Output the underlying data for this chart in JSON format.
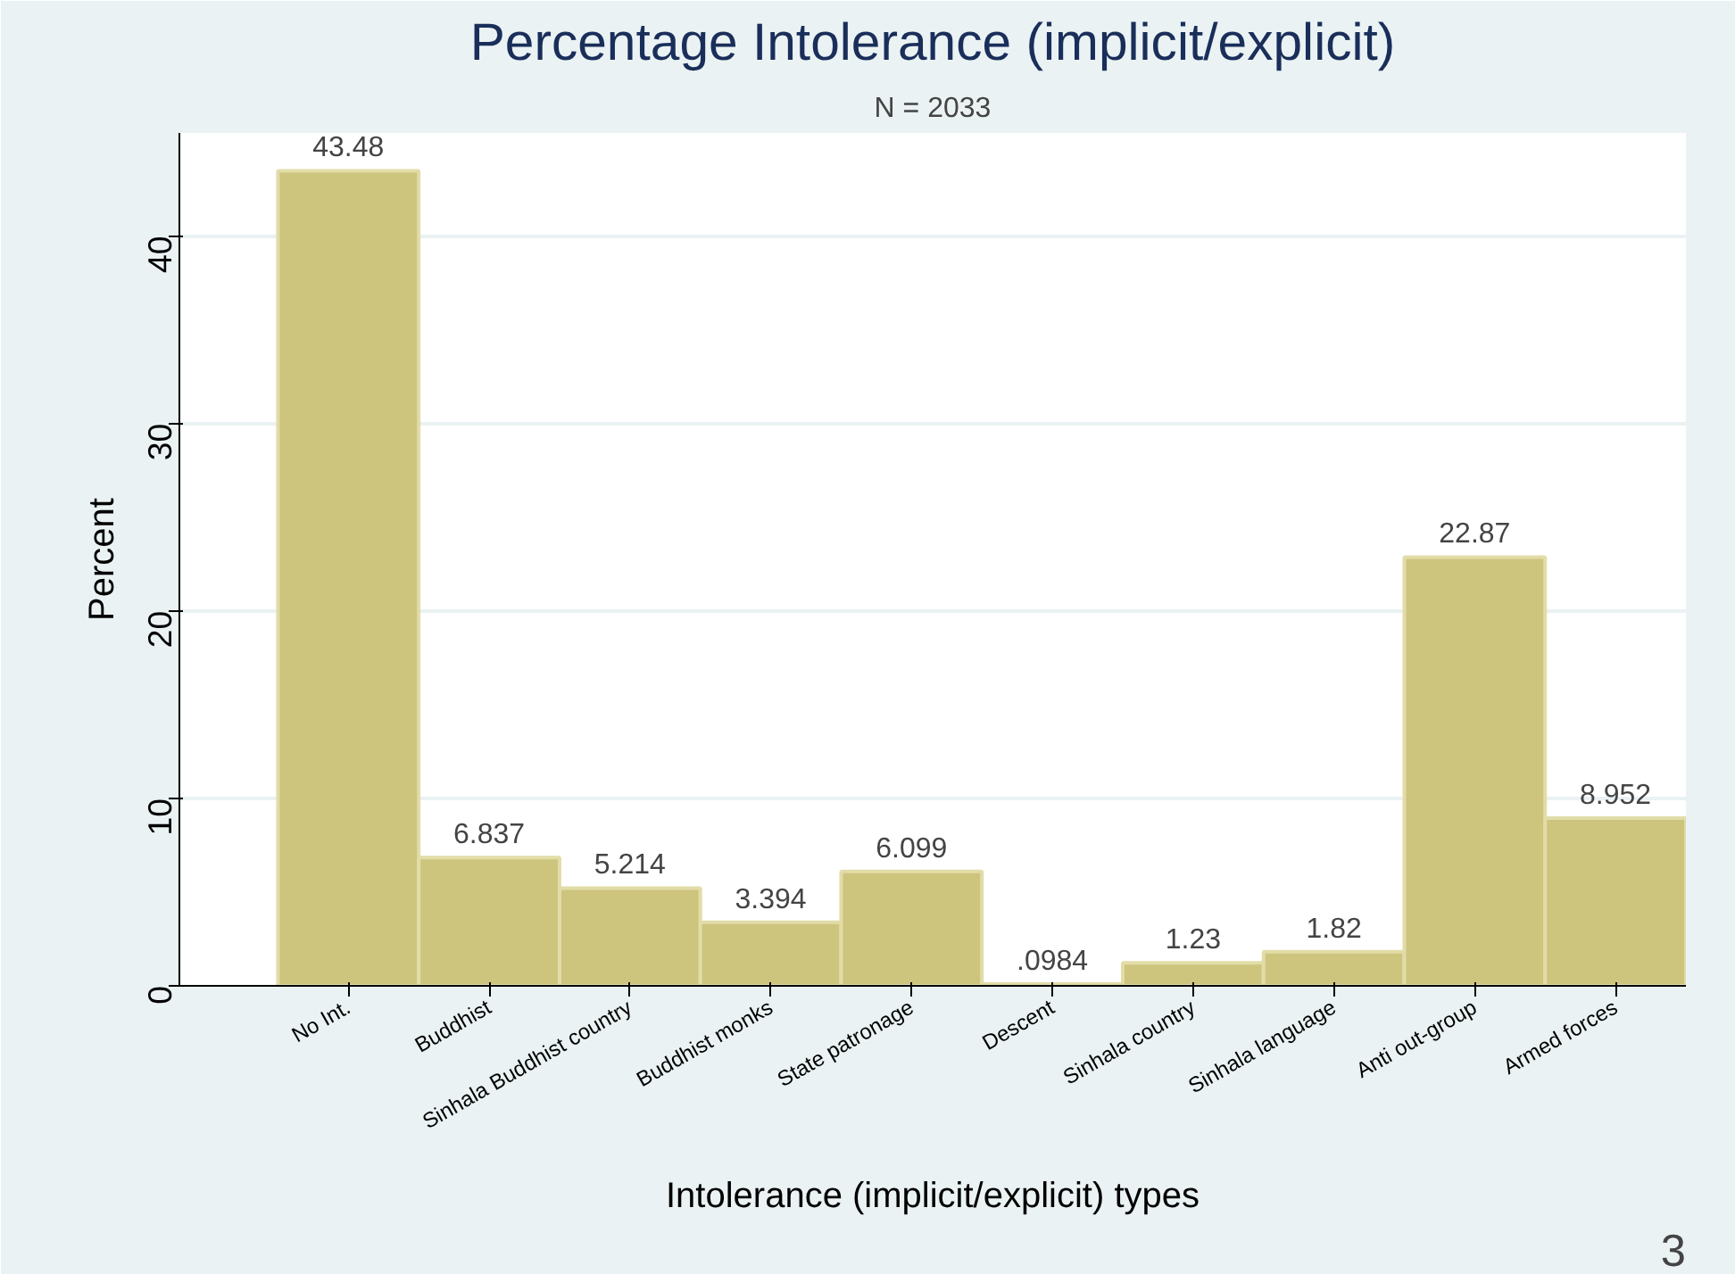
{
  "chart_data": {
    "type": "bar",
    "title": "Percentage Intolerance (implicit/explicit)",
    "subtitle": "N = 2033",
    "xlabel": "Intolerance (implicit/explicit) types",
    "ylabel": "Percent",
    "categories": [
      "No Int.",
      "Buddhist",
      "Sinhala Buddhist country",
      "Buddhist monks",
      "State patronage",
      "Descent",
      "Sinhala country",
      "Sinhala language",
      "Anti out-group",
      "Armed forces"
    ],
    "values": [
      43.48,
      6.837,
      5.214,
      3.394,
      6.099,
      0.0984,
      1.23,
      1.82,
      22.87,
      8.952
    ],
    "value_labels": [
      "43.48",
      "6.837",
      "5.214",
      "3.394",
      "6.099",
      ".0984",
      "1.23",
      "1.82",
      "22.87",
      "8.952"
    ],
    "color": "#cdc47e",
    "ylim": [
      0,
      45.5
    ],
    "yticks": [
      0,
      10,
      20,
      30,
      40
    ],
    "grid": "y",
    "annotations": [
      "3"
    ]
  }
}
